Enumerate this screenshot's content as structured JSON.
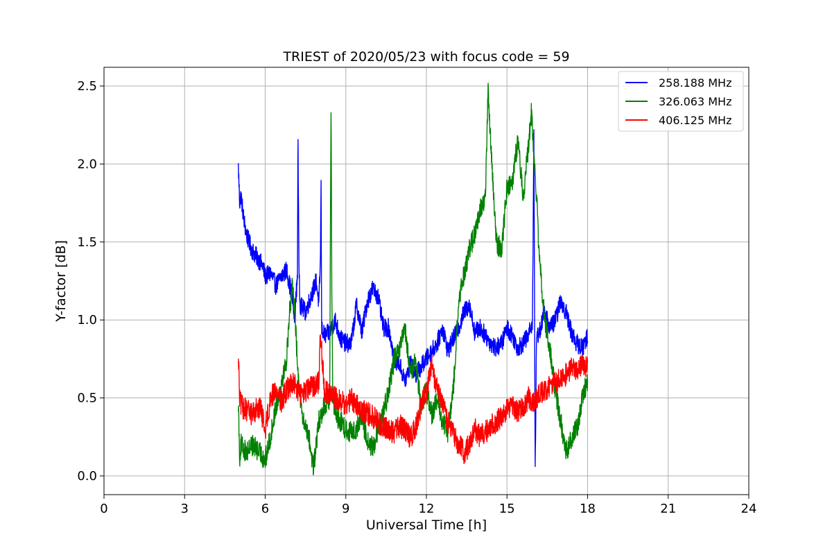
{
  "chart_data": {
    "type": "line",
    "title": "TRIEST of 2020/05/23 with focus code = 59",
    "xlabel": "Universal Time [h]",
    "ylabel": "Y-factor [dB]",
    "xlim": [
      0,
      24
    ],
    "ylim": [
      -0.12,
      2.62
    ],
    "xticks": [
      0,
      3,
      6,
      9,
      12,
      15,
      18,
      21,
      24
    ],
    "yticks": [
      0.0,
      0.5,
      1.0,
      1.5,
      2.0,
      2.5
    ],
    "ytick_labels": [
      "0.0",
      "0.5",
      "1.0",
      "1.5",
      "2.0",
      "2.5"
    ],
    "grid": true,
    "legend_position": "top-right",
    "series": [
      {
        "name": "258.188 MHz",
        "color": "#0000ff",
        "noise": 0.06,
        "x": [
          5.0,
          5.05,
          5.1,
          5.2,
          5.3,
          5.5,
          5.7,
          5.9,
          6.0,
          6.2,
          6.4,
          6.6,
          6.8,
          7.0,
          7.1,
          7.2,
          7.22,
          7.25,
          7.3,
          7.5,
          7.7,
          7.9,
          8.0,
          8.05,
          8.08,
          8.1,
          8.2,
          8.4,
          8.6,
          8.8,
          9.0,
          9.2,
          9.4,
          9.6,
          9.8,
          10.0,
          10.2,
          10.4,
          10.6,
          10.8,
          11.0,
          11.2,
          11.4,
          11.6,
          11.8,
          12.0,
          12.2,
          12.4,
          12.6,
          12.8,
          13.0,
          13.2,
          13.4,
          13.6,
          13.8,
          14.0,
          14.2,
          14.4,
          14.6,
          14.8,
          15.0,
          15.2,
          15.4,
          15.6,
          15.8,
          15.95,
          16.0,
          16.05,
          16.1,
          16.2,
          16.4,
          16.6,
          16.8,
          17.0,
          17.2,
          17.4,
          17.6,
          17.8,
          18.0
        ],
        "y": [
          1.98,
          1.75,
          1.8,
          1.65,
          1.55,
          1.45,
          1.4,
          1.35,
          1.28,
          1.3,
          1.22,
          1.28,
          1.32,
          1.15,
          1.0,
          1.3,
          2.22,
          1.4,
          1.1,
          1.05,
          1.15,
          1.25,
          1.1,
          1.35,
          1.87,
          0.95,
          0.9,
          0.92,
          1.0,
          0.88,
          0.85,
          0.85,
          1.1,
          0.92,
          1.12,
          1.2,
          1.15,
          0.95,
          0.95,
          0.75,
          0.72,
          0.6,
          0.72,
          0.65,
          0.7,
          0.75,
          0.8,
          0.85,
          0.95,
          0.8,
          0.88,
          0.95,
          1.05,
          1.1,
          0.92,
          0.95,
          0.9,
          0.85,
          0.82,
          0.85,
          0.95,
          0.9,
          0.82,
          0.85,
          0.9,
          1.0,
          2.25,
          0.02,
          0.9,
          0.92,
          1.05,
          0.95,
          1.0,
          1.12,
          1.05,
          0.92,
          0.85,
          0.82,
          0.9
        ]
      },
      {
        "name": "326.063 MHz",
        "color": "#008000",
        "noise": 0.07,
        "x": [
          5.0,
          5.05,
          5.1,
          5.3,
          5.5,
          5.8,
          6.0,
          6.2,
          6.4,
          6.6,
          6.8,
          6.9,
          7.0,
          7.1,
          7.2,
          7.4,
          7.6,
          7.8,
          8.0,
          8.2,
          8.4,
          8.45,
          8.48,
          8.52,
          8.6,
          8.8,
          9.0,
          9.2,
          9.4,
          9.6,
          9.8,
          10.0,
          10.2,
          10.4,
          10.6,
          10.8,
          11.0,
          11.2,
          11.4,
          11.6,
          11.8,
          12.0,
          12.2,
          12.4,
          12.6,
          12.8,
          13.0,
          13.2,
          13.4,
          13.6,
          13.8,
          14.0,
          14.2,
          14.3,
          14.4,
          14.6,
          14.8,
          15.0,
          15.2,
          15.4,
          15.6,
          15.8,
          15.9,
          16.0,
          16.1,
          16.2,
          16.4,
          16.6,
          16.8,
          17.0,
          17.2,
          17.4,
          17.6,
          17.8,
          18.0
        ],
        "y": [
          0.48,
          0.12,
          0.2,
          0.15,
          0.2,
          0.15,
          0.1,
          0.25,
          0.45,
          0.6,
          0.75,
          1.05,
          1.2,
          1.1,
          0.7,
          0.35,
          0.28,
          0.05,
          0.35,
          0.45,
          0.5,
          2.4,
          1.2,
          0.5,
          0.4,
          0.35,
          0.3,
          0.28,
          0.3,
          0.38,
          0.22,
          0.18,
          0.28,
          0.4,
          0.55,
          0.75,
          0.8,
          0.95,
          0.65,
          0.75,
          0.45,
          0.55,
          0.4,
          0.48,
          0.35,
          0.28,
          0.55,
          1.1,
          1.3,
          1.45,
          1.55,
          1.7,
          1.8,
          2.5,
          2.1,
          1.5,
          1.45,
          1.85,
          1.9,
          2.15,
          1.8,
          2.1,
          2.35,
          2.05,
          1.8,
          1.4,
          1.0,
          0.8,
          0.55,
          0.35,
          0.15,
          0.25,
          0.3,
          0.5,
          0.62
        ]
      },
      {
        "name": "406.125 MHz",
        "color": "#ff0000",
        "noise": 0.075,
        "x": [
          5.0,
          5.05,
          5.1,
          5.3,
          5.5,
          5.8,
          6.0,
          6.2,
          6.4,
          6.6,
          6.8,
          7.0,
          7.2,
          7.4,
          7.6,
          7.8,
          8.0,
          8.05,
          8.2,
          8.4,
          8.6,
          8.8,
          9.0,
          9.2,
          9.4,
          9.6,
          9.8,
          10.0,
          10.2,
          10.4,
          10.6,
          10.8,
          11.0,
          11.2,
          11.4,
          11.6,
          11.8,
          12.0,
          12.2,
          12.4,
          12.6,
          12.8,
          13.0,
          13.2,
          13.4,
          13.6,
          13.8,
          14.0,
          14.2,
          14.4,
          14.6,
          14.8,
          15.0,
          15.2,
          15.4,
          15.6,
          15.8,
          16.0,
          16.2,
          16.4,
          16.6,
          16.8,
          17.0,
          17.2,
          17.4,
          17.6,
          17.8,
          18.0
        ],
        "y": [
          0.78,
          0.5,
          0.45,
          0.42,
          0.4,
          0.45,
          0.3,
          0.5,
          0.55,
          0.48,
          0.55,
          0.6,
          0.55,
          0.52,
          0.55,
          0.58,
          0.6,
          0.95,
          0.55,
          0.52,
          0.5,
          0.48,
          0.45,
          0.5,
          0.45,
          0.42,
          0.4,
          0.38,
          0.35,
          0.32,
          0.3,
          0.28,
          0.32,
          0.3,
          0.25,
          0.3,
          0.45,
          0.55,
          0.7,
          0.55,
          0.45,
          0.35,
          0.28,
          0.2,
          0.15,
          0.2,
          0.3,
          0.25,
          0.28,
          0.32,
          0.35,
          0.38,
          0.42,
          0.45,
          0.4,
          0.45,
          0.5,
          0.48,
          0.52,
          0.55,
          0.58,
          0.6,
          0.62,
          0.65,
          0.7,
          0.68,
          0.72,
          0.7
        ]
      }
    ]
  }
}
